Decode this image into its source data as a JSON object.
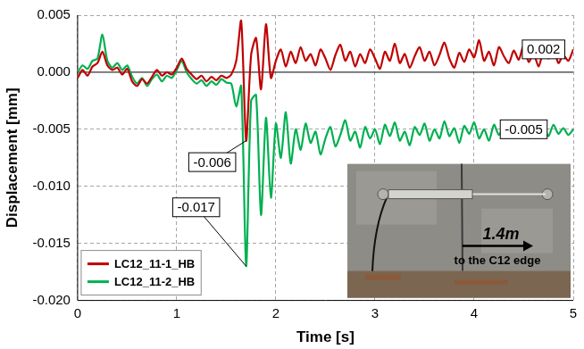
{
  "chart_data": {
    "type": "line",
    "x_label": "Time [s]",
    "y_label": "Displacement [mm]",
    "x": [
      0,
      0.05,
      0.1,
      0.15,
      0.2,
      0.25,
      0.3,
      0.35,
      0.4,
      0.45,
      0.5,
      0.55,
      0.6,
      0.65,
      0.7,
      0.75,
      0.8,
      0.85,
      0.9,
      0.95,
      1,
      1.05,
      1.1,
      1.15,
      1.2,
      1.25,
      1.3,
      1.35,
      1.4,
      1.45,
      1.5,
      1.55,
      1.6,
      1.65,
      1.7,
      1.75,
      1.8,
      1.85,
      1.9,
      1.95,
      2,
      2.05,
      2.1,
      2.15,
      2.2,
      2.25,
      2.3,
      2.35,
      2.4,
      2.45,
      2.5,
      2.55,
      2.6,
      2.65,
      2.7,
      2.75,
      2.8,
      2.85,
      2.9,
      2.95,
      3,
      3.05,
      3.1,
      3.15,
      3.2,
      3.25,
      3.3,
      3.35,
      3.4,
      3.45,
      3.5,
      3.55,
      3.6,
      3.65,
      3.7,
      3.75,
      3.8,
      3.85,
      3.9,
      3.95,
      4,
      4.05,
      4.1,
      4.15,
      4.2,
      4.25,
      4.3,
      4.35,
      4.4,
      4.45,
      4.5,
      4.55,
      4.6,
      4.65,
      4.7,
      4.75,
      4.8,
      4.85,
      4.9,
      4.95,
      5
    ],
    "series": [
      {
        "name": "LC12_11-1_HB",
        "color": "#c00000",
        "values": [
          -0.0005,
          0.0002,
          -0.0003,
          0.0005,
          0.0008,
          0.0018,
          0.0006,
          0.0002,
          0.0004,
          -0.0002,
          0.0003,
          -0.0008,
          -0.0012,
          -0.0006,
          -0.001,
          -0.0004,
          0.0002,
          -0.0003,
          0,
          -0.0002,
          0.0004,
          0.0012,
          0.0003,
          -0.0002,
          -0.0006,
          -0.0003,
          -0.0008,
          -0.0004,
          -0.0007,
          -0.0003,
          -0.0005,
          -0.0002,
          0.001,
          0.0045,
          -0.006,
          0.0015,
          0.003,
          -0.0015,
          0.0042,
          -0.0005,
          0.001,
          0.002,
          0.0005,
          0.0018,
          0.0008,
          0.0022,
          0.001,
          0.0016,
          0.0006,
          0.002,
          0.0012,
          0.0002,
          0.0015,
          0.0024,
          0.001,
          0.0018,
          0.0005,
          0.0016,
          0.0008,
          0.002,
          0.0012,
          0.0003,
          0.0018,
          0.001,
          0.0025,
          0.0008,
          0.0016,
          0.0004,
          0.0014,
          0.0022,
          0.001,
          0.0018,
          0.0006,
          0.0015,
          0.0026,
          0.0012,
          0.0004,
          0.0017,
          0.0009,
          0.002,
          0.0013,
          0.0028,
          0.001,
          0.0018,
          0.0006,
          0.0022,
          0.0014,
          0.0008,
          0.0019,
          0.0011,
          0.0024,
          0.0009,
          0.0016,
          0.0005,
          0.0018,
          0.0012,
          0.0021,
          0.0008,
          0.0015,
          0.001,
          0.002
        ]
      },
      {
        "name": "LC12_11-2_HB",
        "color": "#00b050",
        "values": [
          0,
          0.0006,
          0.0003,
          0.001,
          0.0012,
          0.0033,
          0.001,
          0.0004,
          0.0008,
          0.0002,
          0.0006,
          -0.0004,
          -0.001,
          -0.0005,
          -0.0012,
          -0.0006,
          -0.0002,
          -0.0008,
          -0.0003,
          -0.0005,
          0.0002,
          0.001,
          0,
          -0.0006,
          -0.001,
          -0.0007,
          -0.0012,
          -0.0008,
          -0.0011,
          -0.0006,
          -0.0009,
          -0.001,
          -0.003,
          -0.0012,
          -0.017,
          -0.0025,
          -0.002,
          -0.0125,
          -0.004,
          -0.011,
          -0.0045,
          -0.0075,
          -0.0035,
          -0.008,
          -0.005,
          -0.0068,
          -0.0045,
          -0.0062,
          -0.0052,
          -0.0072,
          -0.0058,
          -0.0048,
          -0.0065,
          -0.0055,
          -0.0042,
          -0.006,
          -0.0052,
          -0.0066,
          -0.0048,
          -0.0058,
          -0.005,
          -0.0063,
          -0.0046,
          -0.0056,
          -0.0044,
          -0.006,
          -0.0052,
          -0.0064,
          -0.0048,
          -0.0055,
          -0.0045,
          -0.006,
          -0.005,
          -0.0058,
          -0.0043,
          -0.0056,
          -0.0049,
          -0.0062,
          -0.0047,
          -0.0054,
          -0.0044,
          -0.0058,
          -0.005,
          -0.006,
          -0.0046,
          -0.0055,
          -0.0048,
          -0.0057,
          -0.0045,
          -0.0052,
          -0.0047,
          -0.0058,
          -0.0044,
          -0.0053,
          -0.0048,
          -0.0056,
          -0.0046,
          -0.0054,
          -0.0049,
          -0.0055,
          -0.005
        ]
      }
    ],
    "xlim": [
      0,
      5
    ],
    "xticks": [
      0,
      1,
      2,
      3,
      4,
      5
    ],
    "ylim": [
      -0.02,
      0.005
    ],
    "yticks": [
      0.005,
      {
        "value": 0,
        "label": "0.000"
      },
      -0.005,
      {
        "value": -0.01,
        "label": "-0.010"
      },
      -0.015,
      {
        "value": -0.02,
        "label": "-0.020"
      }
    ],
    "grid": true,
    "legend": "lower left",
    "annotations": [
      {
        "text": "0.002",
        "x": 4.7,
        "y": 0.002
      },
      {
        "text": "-0.006",
        "x": 1.7,
        "y": -0.006
      },
      {
        "text": "-0.005",
        "x": 4.5,
        "y": -0.005
      },
      {
        "text": "-0.017",
        "x": 1.7,
        "y": -0.017
      }
    ],
    "inset": {
      "label": "1.4m",
      "caption": "to the C12 edge"
    }
  }
}
